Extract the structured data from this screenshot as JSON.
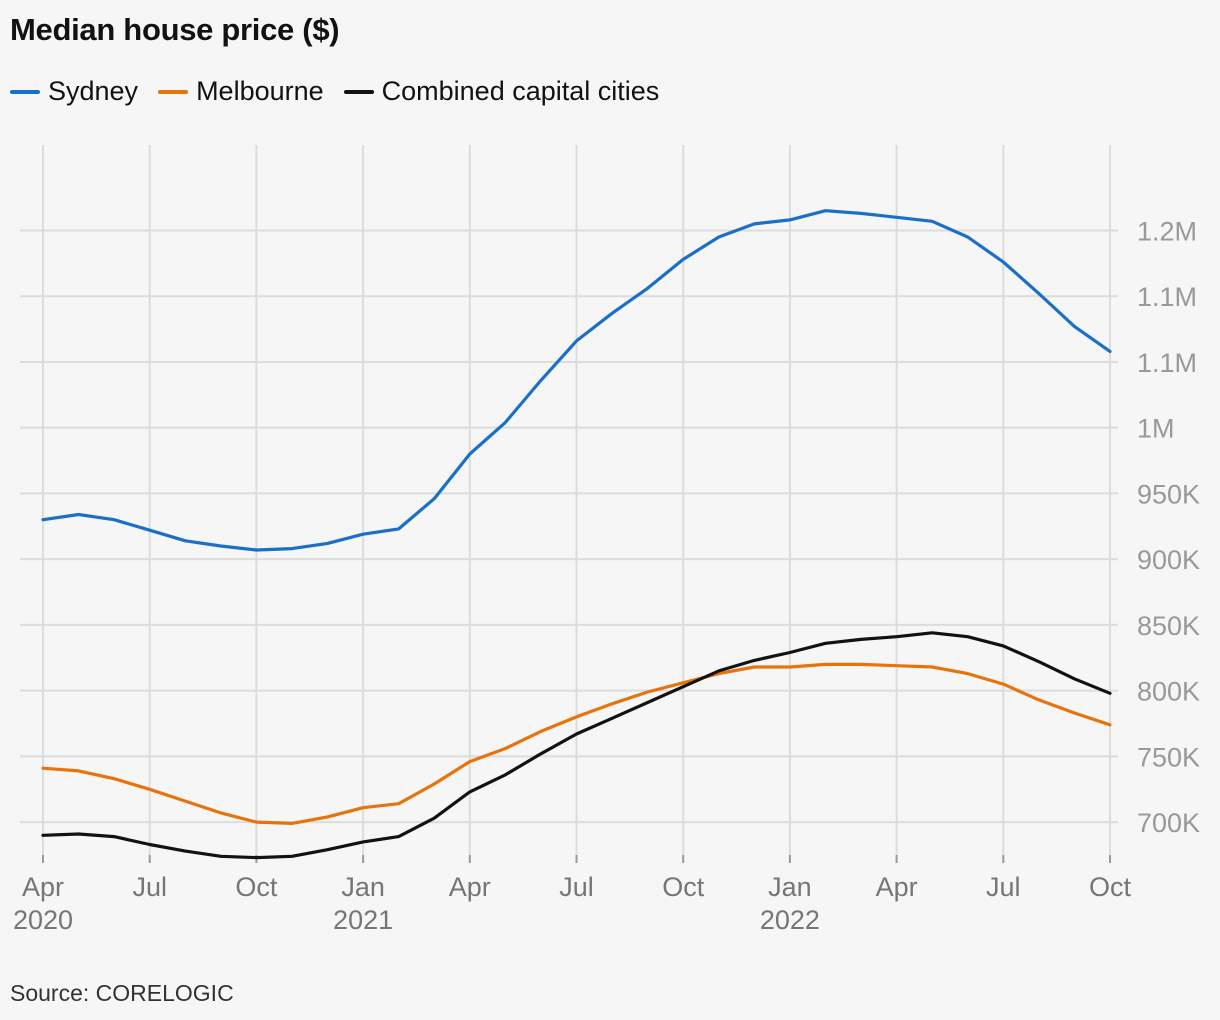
{
  "title": "Median house price ($)",
  "source": "Source: CORELOGIC",
  "chart_data": {
    "type": "line",
    "title": "Median house price ($)",
    "x": [
      "2020-04",
      "2020-05",
      "2020-06",
      "2020-07",
      "2020-08",
      "2020-09",
      "2020-10",
      "2020-11",
      "2020-12",
      "2021-01",
      "2021-02",
      "2021-03",
      "2021-04",
      "2021-05",
      "2021-06",
      "2021-07",
      "2021-08",
      "2021-09",
      "2021-10",
      "2021-11",
      "2021-12",
      "2022-01",
      "2022-02",
      "2022-03",
      "2022-04",
      "2022-05",
      "2022-06",
      "2022-07",
      "2022-08",
      "2022-09",
      "2022-10"
    ],
    "series": [
      {
        "name": "Sydney",
        "color": "#1a6fc9",
        "values": [
          930000,
          934000,
          930000,
          922000,
          914000,
          910000,
          907000,
          908000,
          912000,
          919000,
          923000,
          946000,
          980000,
          1004000,
          1036000,
          1066000,
          1087000,
          1106000,
          1128000,
          1145000,
          1155000,
          1158000,
          1165000,
          1163000,
          1160000,
          1157000,
          1145000,
          1126000,
          1102000,
          1077000,
          1058000
        ]
      },
      {
        "name": "Melbourne",
        "color": "#e8730c",
        "values": [
          741000,
          739000,
          733000,
          725000,
          716000,
          707000,
          700000,
          699000,
          704000,
          711000,
          714000,
          729000,
          746000,
          756000,
          769000,
          780000,
          790000,
          799000,
          806000,
          813000,
          818000,
          818000,
          820000,
          820000,
          819000,
          818000,
          813000,
          805000,
          793000,
          783000,
          774000
        ]
      },
      {
        "name": "Combined capital cities",
        "color": "#121212",
        "values": [
          690000,
          691000,
          689000,
          683000,
          678000,
          674000,
          673000,
          674000,
          679000,
          685000,
          689000,
          703000,
          723000,
          736000,
          752000,
          767000,
          779000,
          791000,
          803000,
          815000,
          823000,
          829000,
          836000,
          839000,
          841000,
          844000,
          841000,
          834000,
          822000,
          809000,
          798000
        ]
      }
    ],
    "ylim": [
      675000,
      1215000
    ],
    "y_ticks": [
      700000,
      750000,
      800000,
      850000,
      900000,
      950000,
      1000000,
      1050000,
      1100000,
      1150000
    ],
    "y_tick_labels": [
      "700K",
      "750K",
      "800K",
      "850K",
      "900K",
      "950K",
      "1M",
      "1.1M",
      "1.1M",
      "1.2M"
    ],
    "x_ticks": [
      {
        "x": "2020-04",
        "label": "Apr",
        "year": "2020"
      },
      {
        "x": "2020-07",
        "label": "Jul",
        "year": ""
      },
      {
        "x": "2020-10",
        "label": "Oct",
        "year": ""
      },
      {
        "x": "2021-01",
        "label": "Jan",
        "year": "2021"
      },
      {
        "x": "2021-04",
        "label": "Apr",
        "year": ""
      },
      {
        "x": "2021-07",
        "label": "Jul",
        "year": ""
      },
      {
        "x": "2021-10",
        "label": "Oct",
        "year": ""
      },
      {
        "x": "2022-01",
        "label": "Jan",
        "year": "2022"
      },
      {
        "x": "2022-04",
        "label": "Apr",
        "year": ""
      },
      {
        "x": "2022-07",
        "label": "Jul",
        "year": ""
      },
      {
        "x": "2022-10",
        "label": "Oct",
        "year": ""
      }
    ],
    "grid": true,
    "legend_position": "top-left",
    "y_axis_side": "right"
  }
}
